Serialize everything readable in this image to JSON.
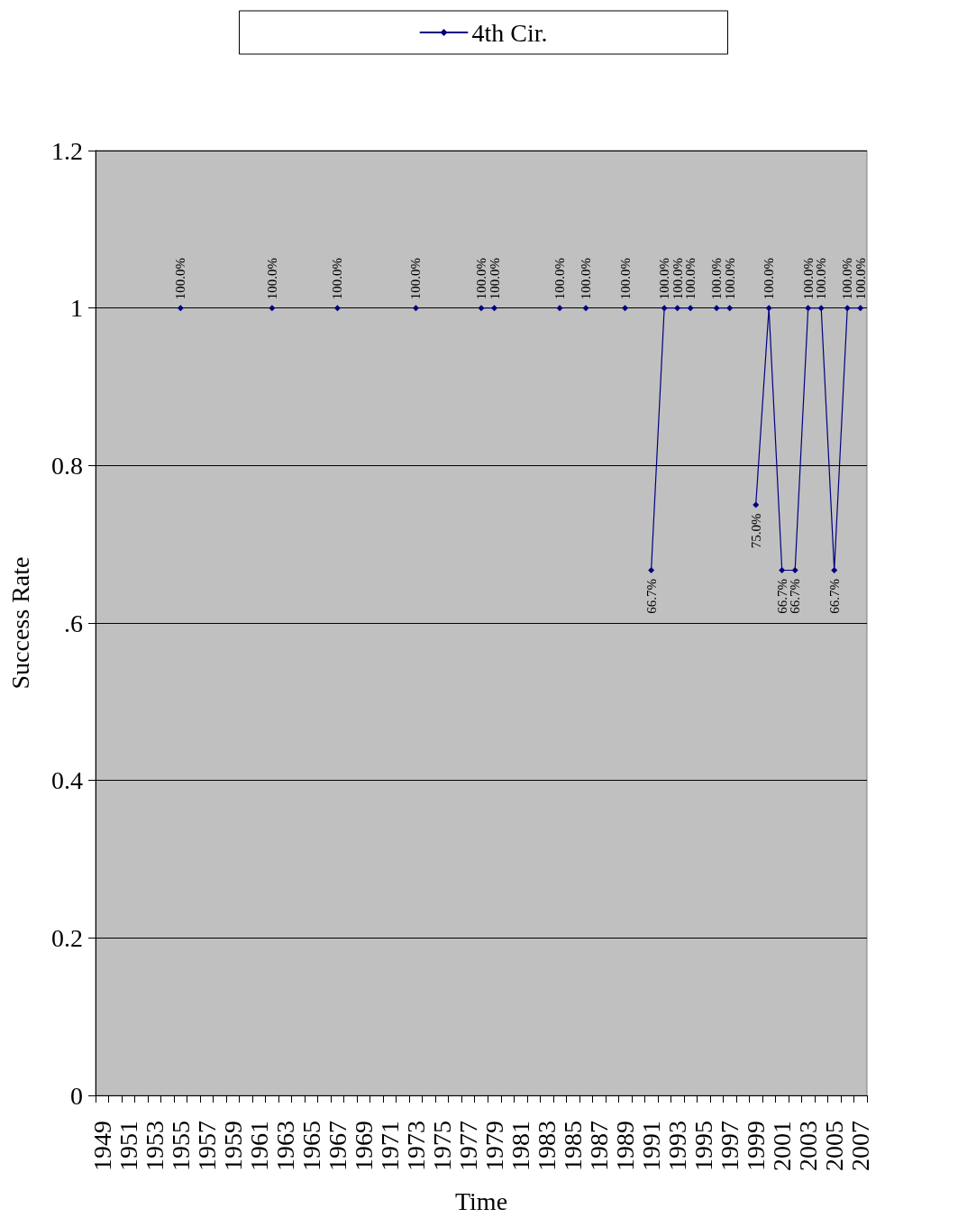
{
  "chart_data": {
    "type": "line",
    "xlabel": "Time",
    "ylabel": "Success Rate",
    "categories": [
      "1949",
      null,
      "1951",
      null,
      "1953",
      null,
      "1955",
      null,
      "1957",
      null,
      "1959",
      null,
      "1961",
      null,
      "1963",
      null,
      "1965",
      null,
      "1967",
      null,
      "1969",
      null,
      "1971",
      null,
      "1973",
      null,
      "1975",
      null,
      "1977",
      null,
      "1979",
      null,
      "1981",
      null,
      "1983",
      null,
      "1985",
      null,
      "1987",
      null,
      "1989",
      null,
      "1991",
      null,
      "1993",
      null,
      "1995",
      null,
      "1997",
      null,
      "1999",
      null,
      "2001",
      null,
      "2003",
      null,
      "2005",
      null,
      "2007"
    ],
    "series": [
      {
        "name": "4th Cir.",
        "color": "#000080",
        "values": [
          null,
          null,
          null,
          null,
          null,
          null,
          1,
          null,
          null,
          null,
          null,
          null,
          null,
          1,
          null,
          null,
          null,
          null,
          1,
          null,
          null,
          null,
          null,
          null,
          1,
          null,
          null,
          null,
          null,
          1,
          1,
          null,
          null,
          null,
          null,
          1,
          null,
          1,
          null,
          null,
          1,
          null,
          0.667,
          1,
          1,
          1,
          null,
          1,
          1,
          null,
          0.75,
          1,
          0.667,
          0.667,
          1,
          1,
          0.667,
          1,
          1
        ],
        "value_labels": [
          null,
          null,
          null,
          null,
          null,
          null,
          "100.0%",
          null,
          null,
          null,
          null,
          null,
          null,
          "100.0%",
          null,
          null,
          null,
          null,
          "100.0%",
          null,
          null,
          null,
          null,
          null,
          "100.0%",
          null,
          null,
          null,
          null,
          "100.0%",
          "100.0%",
          null,
          null,
          null,
          null,
          "100.0%",
          null,
          "100.0%",
          null,
          null,
          "100.0%",
          null,
          "66.7%",
          "100.0%",
          "100.0%",
          "100.0%",
          null,
          "100.0%",
          "100.0%",
          null,
          "75.0%",
          "100.0%",
          "66.7%",
          "66.7%",
          "100.0%",
          "100.0%",
          "66.7%",
          "100.0%",
          "100.0%"
        ]
      }
    ],
    "ylim": [
      0,
      1.2
    ],
    "yticks": [
      0,
      0.2,
      0.4,
      {
        "value": 0.6,
        "label": ".6"
      },
      0.8,
      1,
      1.2
    ],
    "grid": "y",
    "legend": "top",
    "marker": "diamond",
    "line_style": "solid"
  }
}
